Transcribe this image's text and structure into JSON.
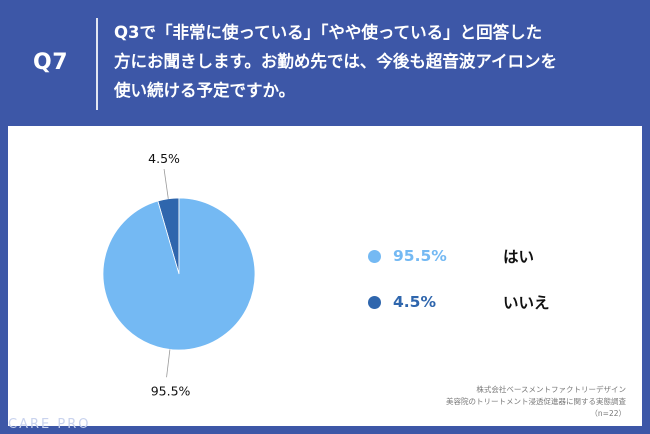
{
  "header": {
    "qnum": "Q7",
    "question": "Q3で「非常に使っている」「やや使っている」と回答した\n方にお聞きします。お勤め先では、今後も超音波アイロンを\n使い続ける予定ですか。"
  },
  "chart_data": {
    "type": "pie",
    "slices": [
      {
        "label": "はい",
        "value": 95.5,
        "display": "95.5%",
        "color": "#74b9f3"
      },
      {
        "label": "いいえ",
        "value": 4.5,
        "display": "4.5%",
        "color": "#2f66ad"
      }
    ],
    "legend_position": "right"
  },
  "legend": {
    "items": [
      {
        "pct": "95.5%",
        "label": "はい",
        "color": "#74b9f3"
      },
      {
        "pct": "4.5%",
        "label": "いいえ",
        "color": "#2f66ad"
      }
    ]
  },
  "source": {
    "line1": "株式会社ベースメントファクトリーデザイン",
    "line2": "美容院のトリートメント浸透促進器に関する実態調査",
    "line3": "（n=22）"
  },
  "brand": {
    "text": "CARE PRO"
  },
  "colors": {
    "background": "#3d57a7",
    "panel": "#ffffff",
    "yes": "#74b9f3",
    "no": "#2f66ad"
  }
}
